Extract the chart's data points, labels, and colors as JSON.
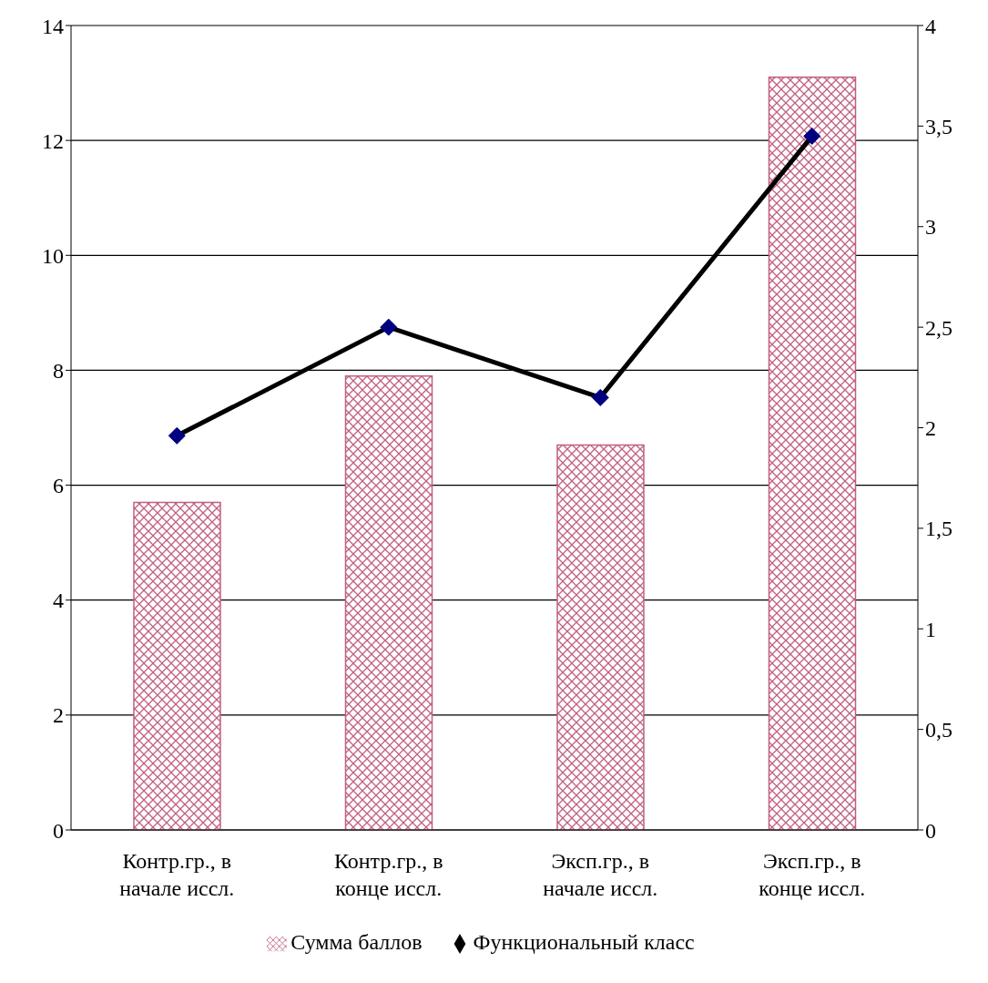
{
  "chart_data": {
    "type": "bar",
    "categories": [
      "Контр.гр., в начале иссл.",
      "Контр.гр., в конце иссл.",
      "Эксп.гр., в начале иссл.",
      "Эксп.гр., в конце иссл."
    ],
    "series": [
      {
        "name": "Сумма баллов",
        "color": "#c06080",
        "values": [
          5.7,
          7.9,
          6.7,
          13.1
        ]
      },
      {
        "name": "Функциональный класс",
        "type": "line",
        "axis": "y2",
        "color": "#000000",
        "marker": "diamond",
        "values": [
          1.96,
          2.5,
          2.15,
          3.45
        ]
      }
    ],
    "ylim": [
      0,
      14
    ],
    "yticks": [
      0,
      2,
      4,
      6,
      8,
      10,
      12,
      14
    ],
    "y2lim": [
      0,
      4
    ],
    "y2ticks": [
      0,
      {
        "value": 0.5,
        "label": "0,5"
      },
      1,
      {
        "value": 1.5,
        "label": "1,5"
      },
      2,
      {
        "value": 2.5,
        "label": "2,5"
      },
      3,
      {
        "value": 3.5,
        "label": "3,5"
      },
      4
    ],
    "grid": "y",
    "legend": "bottom"
  }
}
